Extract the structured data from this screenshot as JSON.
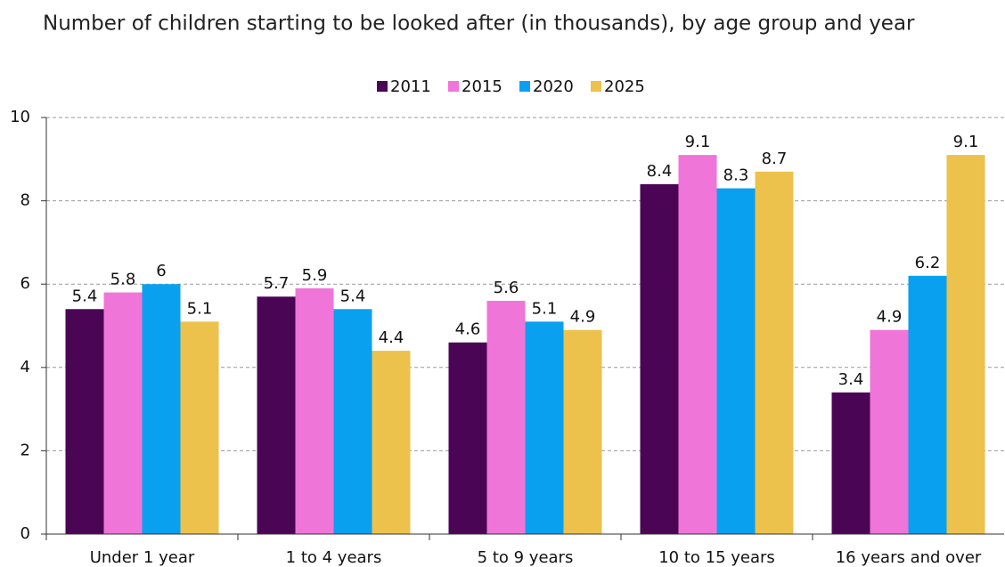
{
  "chart_data": {
    "type": "bar",
    "title": "Number of children starting to be looked after (in thousands), by age group and year",
    "categories": [
      "Under 1 year",
      "1 to 4 years",
      "5 to 9 years",
      "10 to 15 years",
      "16 years and over"
    ],
    "series": [
      {
        "name": "2011",
        "color": "#4b0555",
        "label_color": "#4b0555",
        "values": [
          5.4,
          5.7,
          4.6,
          8.4,
          3.4
        ]
      },
      {
        "name": "2015",
        "color": "#f075d8",
        "label_color": "#e87ad8",
        "values": [
          5.8,
          5.9,
          5.6,
          9.1,
          4.9
        ]
      },
      {
        "name": "2020",
        "color": "#0aa0f0",
        "label_color": "#1a98dc",
        "values": [
          6.0,
          5.4,
          5.1,
          8.3,
          6.2
        ]
      },
      {
        "name": "2025",
        "color": "#ecc14c",
        "label_color": "#111111",
        "values": [
          5.1,
          4.4,
          4.9,
          8.7,
          9.1
        ]
      }
    ],
    "ylim": [
      0,
      10
    ],
    "yticks": [
      0,
      2,
      4,
      6,
      8,
      10
    ],
    "grid": true,
    "legend": "top"
  }
}
